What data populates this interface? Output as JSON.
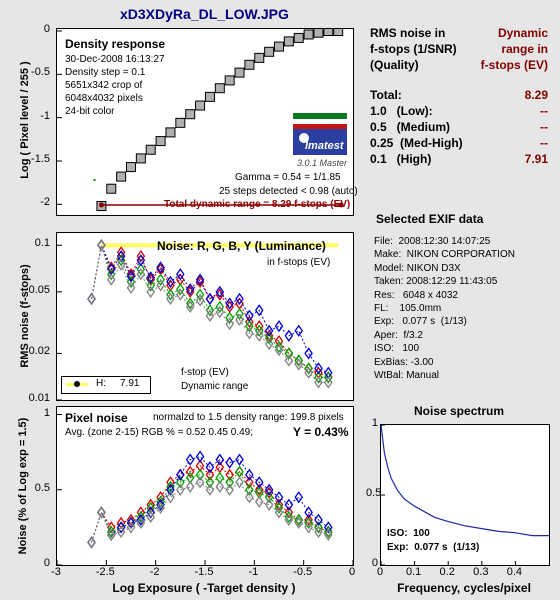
{
  "title": "xD3XDyRa_DL_LOW.JPG",
  "colors": {
    "title": "#000080",
    "dark_red": "#800000",
    "bg": "#e6e6e6",
    "red": "#d40000",
    "green": "#00a000",
    "blue": "#0000d0",
    "gray": "#808080",
    "yellow": "#ffff60",
    "wine": "#900000"
  },
  "density": {
    "heading": "Density response",
    "info": [
      "30-Dec-2008 16:13:27",
      "Density step = 0.1",
      "5651x342 crop of",
      "6048x4032 pixels",
      "24-bit color"
    ],
    "logo": "Imatest",
    "version": "3.0.1  Master",
    "gamma": "Gamma = 0.54 = 1/1.85",
    "steps": "25 steps detected < 0.98 (auto)",
    "total_dr": "Total dynamic range = 8.29 f-stops (EV)",
    "ylabel": "Log ( Pixel level / 255 )",
    "yticks": [
      "0",
      "-0.5",
      "-1",
      "-1.5",
      "-2"
    ]
  },
  "rms": {
    "heading": "Noise: R, G, B, Y (Luminance)",
    "subheading": "in f-stops (EV)",
    "ylabel": "RMS noise (f-stops)",
    "yticks": [
      "0.1",
      "0.05",
      "0.02",
      "0.01"
    ],
    "fstop_line1": "f-stop (EV)",
    "fstop_line2": "Dynamic range",
    "legend_label": "H:",
    "legend_value": "7.91"
  },
  "pixel": {
    "heading": "Pixel noise",
    "norm": "normalzd to 1.5 density range: 199.8 pixels",
    "avg": "Avg. (zone 2-15) RGB % = 0.52  0.45  0.49;",
    "y_pct": "Y = 0.43%",
    "ylabel": "Noise (% of Log exp = 1.5)",
    "yticks": [
      "1",
      "0.5",
      "0"
    ],
    "xticks": [
      "-3",
      "-2.5",
      "-2",
      "-1.5",
      "-1",
      "-0.5",
      "0"
    ],
    "xlabel": "Log Exposure ( -Target density )"
  },
  "rms_table": {
    "header_left": [
      "RMS noise in",
      "f-stops (1/SNR)",
      "(Quality)"
    ],
    "header_right": [
      "Dynamic",
      "range in",
      "f-stops (EV)"
    ],
    "rows": [
      {
        "label": "Total:",
        "value": "8.29"
      },
      {
        "label": "1.0   (Low):",
        "value": "--"
      },
      {
        "label": "0.5   (Medium)",
        "value": "--"
      },
      {
        "label": "0.25  (Med-High)",
        "value": "--"
      },
      {
        "label": "0.1   (High)",
        "value": "7.91"
      }
    ]
  },
  "exif": {
    "heading": "Selected EXIF data",
    "rows": [
      "File:  2008:12:30 14:07:25",
      "Make:  NIKON CORPORATION",
      "Model: NIKON D3X",
      "Taken: 2008:12:29 11:43:05",
      "Res:   6048 x 4032",
      "FL:    105.0mm",
      "Exp:   0.077 s  (1/13)",
      "Aper:  f/3.2",
      "ISO:   100",
      "ExBias: -3.00",
      "WtBal: Manual"
    ]
  },
  "spectrum": {
    "heading": "Noise spectrum",
    "xlabel": "Frequency, cycles/pixel",
    "xticks": [
      "0",
      "0.1",
      "0.2",
      "0.3",
      "0.4"
    ],
    "yticks": [
      "1",
      "0.5",
      "0"
    ],
    "iso": "ISO:  100",
    "exp": "Exp:  0.077 s  (1/13)"
  },
  "chart_data": [
    {
      "type": "scatter",
      "title": "Density response",
      "ylabel": "Log ( Pixel level / 255 )",
      "xlim": [
        -3,
        0
      ],
      "ylim": [
        -2.1,
        0
      ],
      "x": [
        -2.55,
        -2.45,
        -2.35,
        -2.25,
        -2.15,
        -2.05,
        -1.95,
        -1.85,
        -1.75,
        -1.65,
        -1.55,
        -1.45,
        -1.35,
        -1.25,
        -1.15,
        -1.05,
        -0.95,
        -0.85,
        -0.75,
        -0.65,
        -0.55,
        -0.45,
        -0.35,
        -0.25,
        -0.15
      ],
      "y": [
        -2.02,
        -1.82,
        -1.68,
        -1.57,
        -1.47,
        -1.37,
        -1.27,
        -1.17,
        -1.06,
        -0.96,
        -0.86,
        -0.76,
        -0.66,
        -0.57,
        -0.48,
        -0.39,
        -0.31,
        -0.24,
        -0.18,
        -0.12,
        -0.08,
        -0.04,
        -0.02,
        0.0,
        0.0
      ]
    },
    {
      "type": "line",
      "title": "Noise: R, G, B, Y (Luminance)",
      "ylabel": "RMS noise (f-stops)",
      "yscale": "log",
      "xlim": [
        -3,
        0
      ],
      "ylim": [
        0.01,
        0.12
      ],
      "x": [
        -2.65,
        -2.55,
        -2.45,
        -2.35,
        -2.25,
        -2.15,
        -2.05,
        -1.95,
        -1.85,
        -1.75,
        -1.65,
        -1.55,
        -1.45,
        -1.35,
        -1.25,
        -1.15,
        -1.05,
        -0.95,
        -0.85,
        -0.75,
        -0.65,
        -0.55,
        -0.45,
        -0.35,
        -0.25
      ],
      "series": [
        {
          "name": "R",
          "values": [
            0.045,
            0.1,
            0.072,
            0.09,
            0.065,
            0.085,
            0.06,
            0.07,
            0.055,
            0.06,
            0.05,
            0.058,
            0.045,
            0.048,
            0.04,
            0.042,
            0.032,
            0.03,
            0.026,
            0.024,
            0.02,
            0.018,
            0.016,
            0.015,
            0.014
          ]
        },
        {
          "name": "G",
          "values": [
            0.045,
            0.1,
            0.065,
            0.08,
            0.058,
            0.07,
            0.055,
            0.06,
            0.048,
            0.052,
            0.042,
            0.048,
            0.038,
            0.04,
            0.034,
            0.036,
            0.03,
            0.028,
            0.025,
            0.022,
            0.02,
            0.018,
            0.016,
            0.014,
            0.014
          ]
        },
        {
          "name": "B",
          "values": [
            0.045,
            0.1,
            0.07,
            0.085,
            0.063,
            0.08,
            0.062,
            0.072,
            0.058,
            0.065,
            0.052,
            0.06,
            0.045,
            0.05,
            0.042,
            0.045,
            0.035,
            0.038,
            0.028,
            0.03,
            0.026,
            0.028,
            0.02,
            0.016,
            0.015
          ]
        },
        {
          "name": "Y",
          "values": [
            0.045,
            0.1,
            0.06,
            0.075,
            0.053,
            0.065,
            0.05,
            0.055,
            0.045,
            0.048,
            0.04,
            0.044,
            0.035,
            0.037,
            0.031,
            0.033,
            0.027,
            0.026,
            0.023,
            0.021,
            0.018,
            0.017,
            0.015,
            0.013,
            0.013
          ]
        }
      ],
      "yellow_bar": {
        "x": [
          -2.55,
          -0.15
        ],
        "y": 0.1
      }
    },
    {
      "type": "line",
      "title": "Pixel noise",
      "ylabel": "Noise (% of Log exp = 1.5)",
      "xlabel": "Log Exposure ( -Target density )",
      "xlim": [
        -3,
        0
      ],
      "ylim": [
        0,
        1.05
      ],
      "x": [
        -2.65,
        -2.55,
        -2.45,
        -2.35,
        -2.25,
        -2.15,
        -2.05,
        -1.95,
        -1.85,
        -1.75,
        -1.65,
        -1.55,
        -1.45,
        -1.35,
        -1.25,
        -1.15,
        -1.05,
        -0.95,
        -0.85,
        -0.75,
        -0.65,
        -0.55,
        -0.45,
        -0.35,
        -0.25
      ],
      "series": [
        {
          "name": "R",
          "values": [
            0.15,
            0.35,
            0.25,
            0.28,
            0.3,
            0.35,
            0.4,
            0.45,
            0.55,
            0.6,
            0.62,
            0.66,
            0.6,
            0.65,
            0.6,
            0.62,
            0.55,
            0.5,
            0.48,
            0.4,
            0.35,
            0.3,
            0.3,
            0.25,
            0.22
          ]
        },
        {
          "name": "G",
          "values": [
            0.15,
            0.35,
            0.22,
            0.25,
            0.28,
            0.32,
            0.38,
            0.42,
            0.52,
            0.55,
            0.58,
            0.6,
            0.55,
            0.58,
            0.55,
            0.62,
            0.5,
            0.48,
            0.45,
            0.38,
            0.32,
            0.3,
            0.28,
            0.25,
            0.22
          ]
        },
        {
          "name": "B",
          "values": [
            0.15,
            0.35,
            0.2,
            0.25,
            0.28,
            0.3,
            0.35,
            0.4,
            0.5,
            0.6,
            0.7,
            0.72,
            0.65,
            0.7,
            0.68,
            0.7,
            0.6,
            0.55,
            0.5,
            0.45,
            0.4,
            0.45,
            0.35,
            0.3,
            0.25
          ]
        },
        {
          "name": "Y",
          "values": [
            0.15,
            0.35,
            0.2,
            0.22,
            0.25,
            0.28,
            0.32,
            0.38,
            0.45,
            0.5,
            0.52,
            0.55,
            0.5,
            0.52,
            0.5,
            0.55,
            0.45,
            0.42,
            0.4,
            0.35,
            0.3,
            0.28,
            0.25,
            0.22,
            0.2
          ]
        }
      ]
    },
    {
      "type": "line",
      "title": "Noise spectrum",
      "xlabel": "Frequency, cycles/pixel",
      "xlim": [
        0,
        0.5
      ],
      "ylim": [
        0,
        1
      ],
      "x": [
        0.0,
        0.01,
        0.02,
        0.03,
        0.05,
        0.07,
        0.1,
        0.13,
        0.16,
        0.2,
        0.25,
        0.3,
        0.35,
        0.4,
        0.45,
        0.5
      ],
      "y": [
        1.0,
        0.8,
        0.7,
        0.62,
        0.53,
        0.47,
        0.42,
        0.38,
        0.34,
        0.31,
        0.28,
        0.26,
        0.24,
        0.23,
        0.21,
        0.21
      ]
    }
  ]
}
